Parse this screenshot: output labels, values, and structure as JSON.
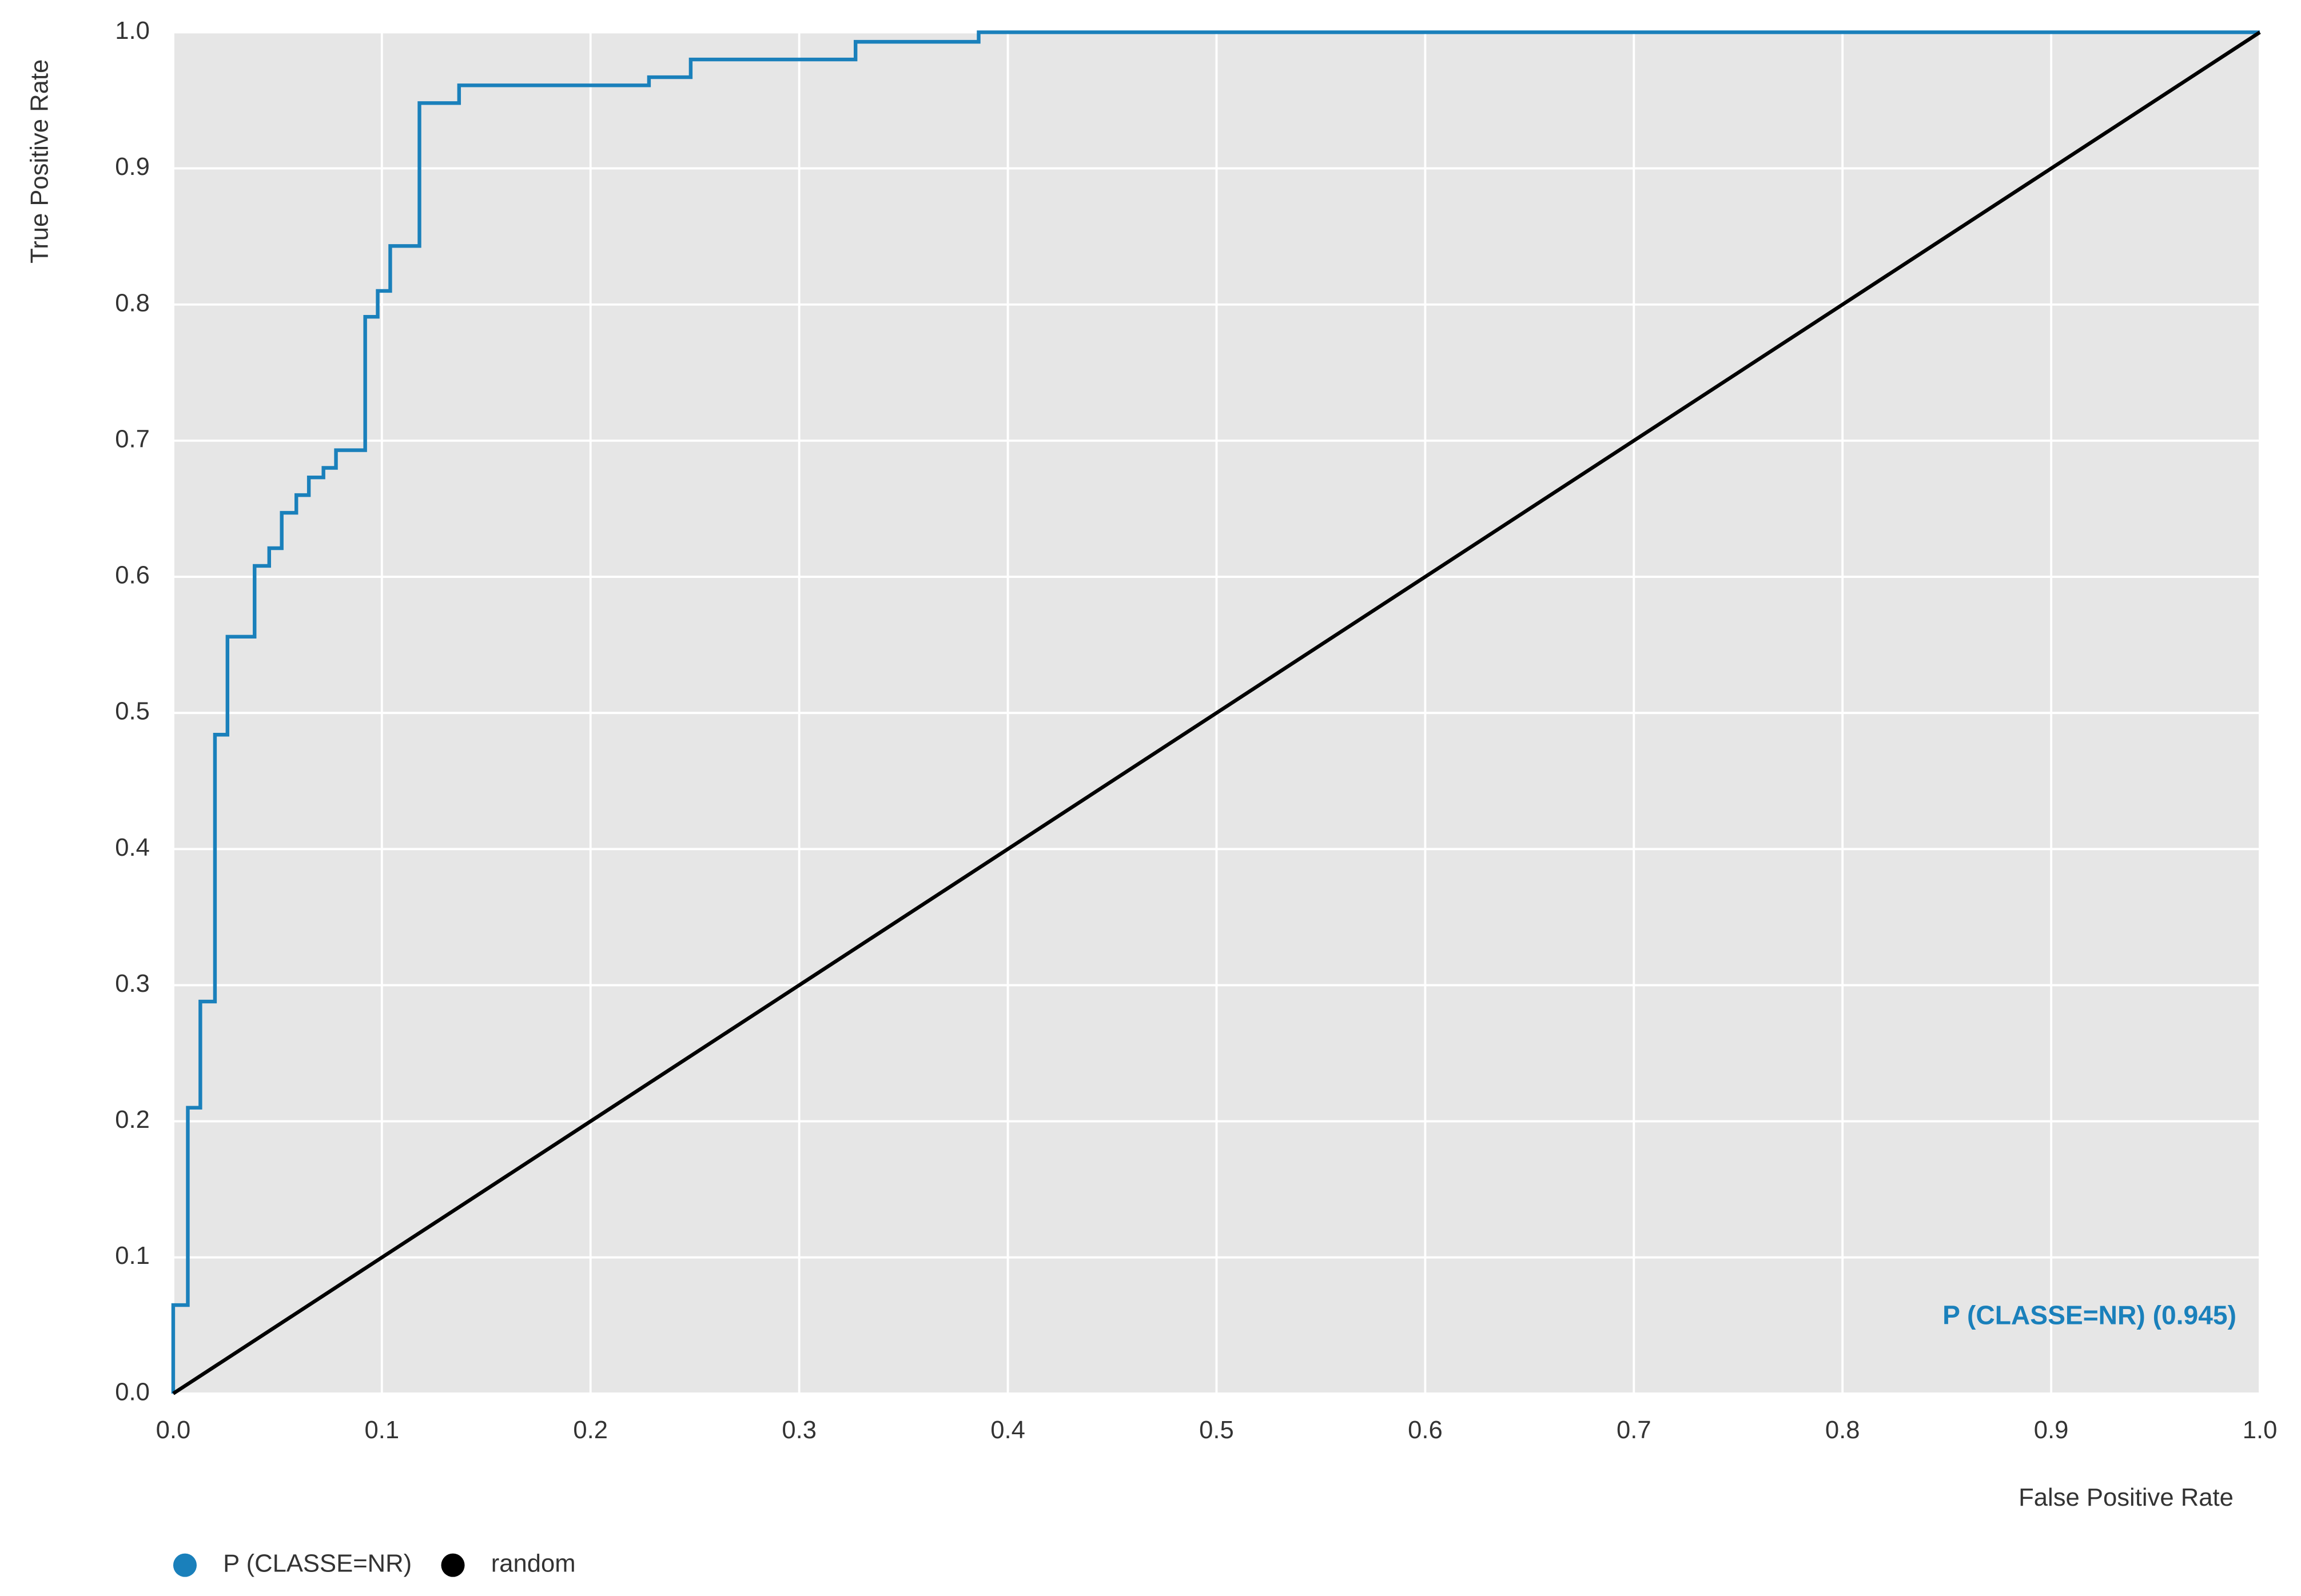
{
  "chart_data": {
    "type": "line",
    "x_label": "False Positive Rate",
    "y_label": "True Positive Rate",
    "annotation": "P (CLASSE=NR) (0.945)",
    "xlim": [
      0,
      1
    ],
    "ylim": [
      0,
      1
    ],
    "xticks": [
      {
        "value": 0,
        "label": "0.0"
      },
      0.1,
      0.2,
      0.3,
      0.4,
      0.5,
      0.6,
      0.7,
      0.8,
      0.9,
      {
        "value": 1,
        "label": "1.0"
      }
    ],
    "yticks": [
      {
        "value": 0,
        "label": "0.0"
      },
      0.1,
      0.2,
      0.3,
      0.4,
      0.5,
      0.6,
      0.7,
      0.8,
      0.9,
      {
        "value": 1,
        "label": "1.0"
      }
    ],
    "grid": true,
    "legend": "bottom-left",
    "series": [
      {
        "name": "P (CLASSE=NR)",
        "color": "#1a80bb",
        "x": [
          0,
          0,
          0.007,
          0.007,
          0.013,
          0.013,
          0.02,
          0.02,
          0.026,
          0.026,
          0.039,
          0.039,
          0.046,
          0.046,
          0.052,
          0.052,
          0.059,
          0.059,
          0.065,
          0.065,
          0.072,
          0.072,
          0.078,
          0.078,
          0.092,
          0.092,
          0.098,
          0.098,
          0.104,
          0.104,
          0.118,
          0.118,
          0.137,
          0.137,
          0.228,
          0.228,
          0.248,
          0.248,
          0.327,
          0.327,
          0.386,
          0.386,
          1
        ],
        "values": [
          0,
          0.065,
          0.065,
          0.21,
          0.21,
          0.288,
          0.288,
          0.484,
          0.484,
          0.556,
          0.556,
          0.608,
          0.608,
          0.621,
          0.621,
          0.647,
          0.647,
          0.66,
          0.66,
          0.673,
          0.673,
          0.68,
          0.68,
          0.693,
          0.693,
          0.791,
          0.791,
          0.81,
          0.81,
          0.843,
          0.843,
          0.948,
          0.948,
          0.961,
          0.961,
          0.967,
          0.967,
          0.98,
          0.98,
          0.993,
          0.993,
          1,
          1
        ]
      },
      {
        "name": "random",
        "color": "#000000",
        "x": [
          0,
          1
        ],
        "values": [
          0,
          1
        ]
      }
    ]
  }
}
